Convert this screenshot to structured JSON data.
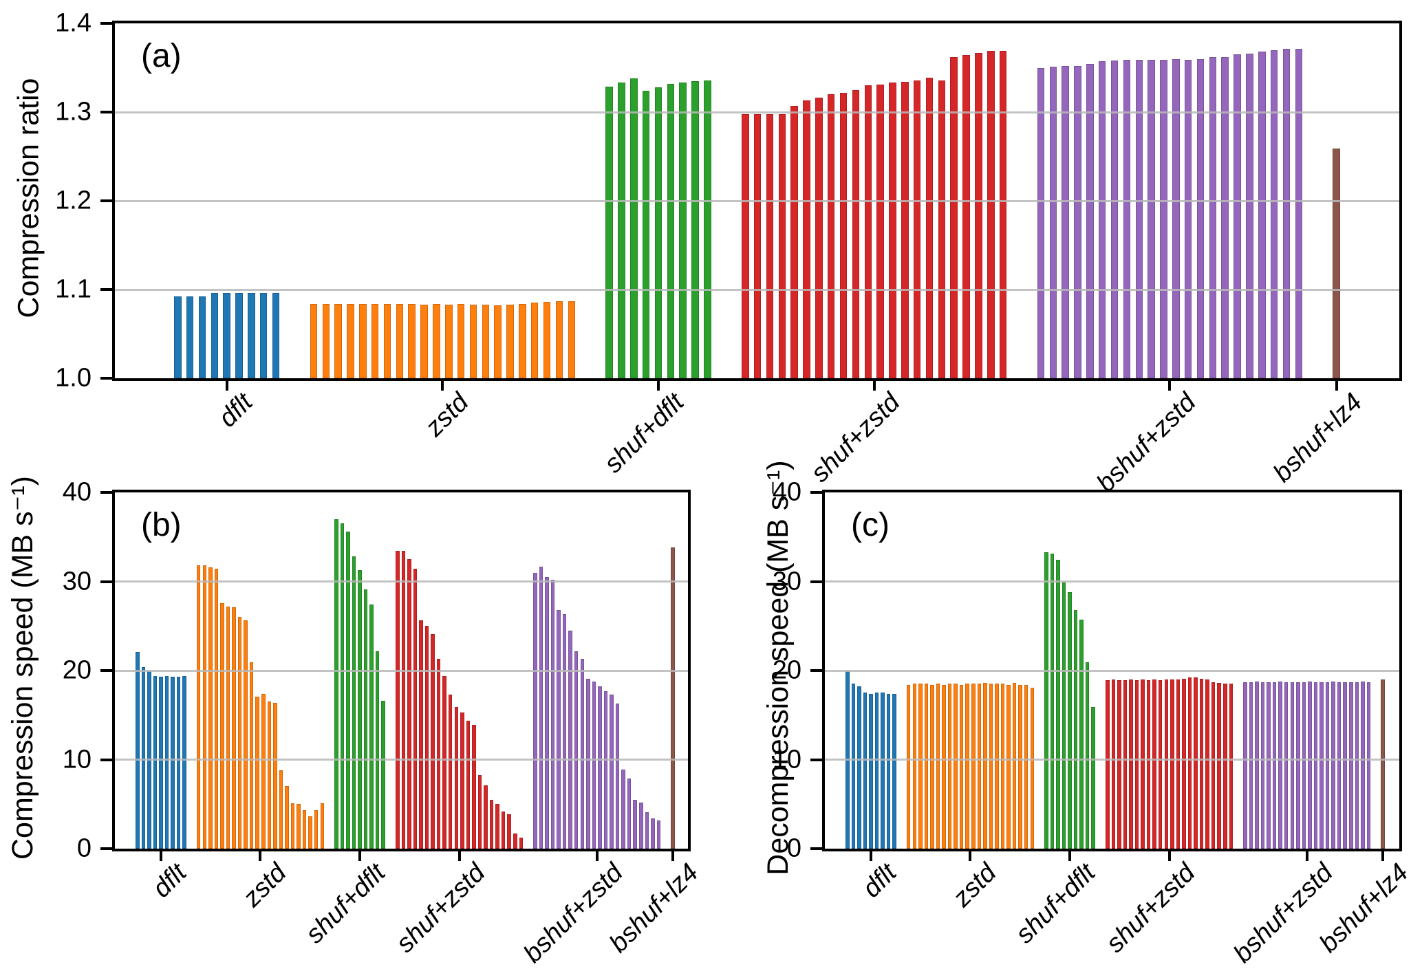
{
  "chart_data": [
    {
      "panel_letter": "(a)",
      "type": "bar",
      "title": "",
      "xlabel": "",
      "ylabel": "Compression ratio",
      "ylim": [
        1.0,
        1.4
      ],
      "yticks": [
        1.0,
        1.1,
        1.2,
        1.3,
        1.4
      ],
      "ytick_labels": [
        "1.0",
        "1.1",
        "1.2",
        "1.3",
        "1.4"
      ],
      "grid": "horizontal gridlines at 1.1, 1.2, 1.3, drawn over bars",
      "legend_position": "none",
      "categories": [
        "dflt",
        "zstd",
        "shuf+dflt",
        "shuf+zstd",
        "bshuf+zstd",
        "bshuf+lz4"
      ],
      "series": [
        {
          "name": "dflt",
          "color": "#1f77b4",
          "values": [
            1.092,
            1.092,
            1.092,
            1.096,
            1.096,
            1.096,
            1.096,
            1.096,
            1.096
          ]
        },
        {
          "name": "zstd",
          "color": "#ff7f0e",
          "values": [
            1.084,
            1.084,
            1.084,
            1.084,
            1.084,
            1.084,
            1.084,
            1.084,
            1.084,
            1.083,
            1.084,
            1.083,
            1.084,
            1.083,
            1.083,
            1.082,
            1.083,
            1.084,
            1.085,
            1.086,
            1.087,
            1.087
          ]
        },
        {
          "name": "shuf+dflt",
          "color": "#2ca02c",
          "values": [
            1.329,
            1.333,
            1.338,
            1.324,
            1.328,
            1.332,
            1.333,
            1.335,
            1.336
          ]
        },
        {
          "name": "shuf+zstd",
          "color": "#d62728",
          "values": [
            1.298,
            1.298,
            1.298,
            1.298,
            1.307,
            1.313,
            1.316,
            1.32,
            1.322,
            1.325,
            1.33,
            1.331,
            1.333,
            1.334,
            1.336,
            1.339,
            1.336,
            1.362,
            1.364,
            1.367,
            1.369,
            1.369
          ]
        },
        {
          "name": "bshuf+zstd",
          "color": "#9467bd",
          "values": [
            1.35,
            1.351,
            1.352,
            1.352,
            1.354,
            1.357,
            1.358,
            1.359,
            1.359,
            1.359,
            1.359,
            1.36,
            1.359,
            1.36,
            1.362,
            1.362,
            1.365,
            1.366,
            1.368,
            1.37,
            1.371,
            1.371
          ]
        },
        {
          "name": "bshuf+lz4",
          "color": "#8c564b",
          "values": [
            1.259
          ]
        }
      ]
    },
    {
      "panel_letter": "(b)",
      "type": "bar",
      "title": "",
      "xlabel": "",
      "ylabel": "Compression speed (MB s⁻¹)",
      "ylim": [
        0,
        40
      ],
      "yticks": [
        0,
        10,
        20,
        30,
        40
      ],
      "ytick_labels": [
        "0",
        "10",
        "20",
        "30",
        "40"
      ],
      "grid": "horizontal gridlines at 10, 20, 30, drawn over bars",
      "legend_position": "none",
      "categories": [
        "dflt",
        "zstd",
        "shuf+dflt",
        "shuf+zstd",
        "bshuf+zstd",
        "bshuf+lz4"
      ],
      "series": [
        {
          "name": "dflt",
          "color": "#1f77b4",
          "values": [
            22.1,
            20.4,
            19.9,
            19.4,
            19.3,
            19.4,
            19.3,
            19.3,
            19.4
          ]
        },
        {
          "name": "zstd",
          "color": "#ff7f0e",
          "values": [
            31.8,
            31.8,
            31.6,
            31.4,
            27.6,
            27.2,
            27.1,
            26.0,
            25.6,
            20.9,
            17.1,
            17.4,
            16.5,
            16.4,
            8.8,
            7.0,
            5.1,
            5.0,
            4.3,
            3.6,
            4.3,
            5.1
          ]
        },
        {
          "name": "shuf+dflt",
          "color": "#2ca02c",
          "values": [
            37.0,
            36.5,
            35.6,
            32.8,
            31.3,
            29.1,
            27.4,
            22.2,
            16.6
          ]
        },
        {
          "name": "shuf+zstd",
          "color": "#d62728",
          "values": [
            33.4,
            33.4,
            32.5,
            31.4,
            25.6,
            25.0,
            24.1,
            21.3,
            19.4,
            17.3,
            15.9,
            15.3,
            14.4,
            13.9,
            8.3,
            7.1,
            5.5,
            5.0,
            4.2,
            3.9,
            1.7,
            1.2
          ]
        },
        {
          "name": "bshuf+zstd",
          "color": "#9467bd",
          "values": [
            31.0,
            31.7,
            30.5,
            30.2,
            26.8,
            26.3,
            24.5,
            22.2,
            21.3,
            19.1,
            18.8,
            18.2,
            17.7,
            17.3,
            16.3,
            8.9,
            7.9,
            5.5,
            5.2,
            4.1,
            3.4,
            3.2
          ]
        },
        {
          "name": "bshuf+lz4",
          "color": "#8c564b",
          "values": [
            33.8
          ]
        }
      ]
    },
    {
      "panel_letter": "(c)",
      "type": "bar",
      "title": "",
      "xlabel": "",
      "ylabel": "Decompression speed (MB s⁻¹)",
      "ylim": [
        0,
        40
      ],
      "yticks": [
        0,
        10,
        20,
        30,
        40
      ],
      "ytick_labels": [
        "0",
        "10",
        "20",
        "30",
        "40"
      ],
      "grid": "horizontal gridlines at 10, 20, 30, drawn over bars",
      "legend_position": "none",
      "categories": [
        "dflt",
        "zstd",
        "shuf+dflt",
        "shuf+zstd",
        "bshuf+zstd",
        "bshuf+lz4"
      ],
      "series": [
        {
          "name": "dflt",
          "color": "#1f77b4",
          "values": [
            19.9,
            18.5,
            18.2,
            17.5,
            17.4,
            17.5,
            17.5,
            17.4,
            17.4
          ]
        },
        {
          "name": "zstd",
          "color": "#ff7f0e",
          "values": [
            18.4,
            18.5,
            18.5,
            18.5,
            18.4,
            18.5,
            18.4,
            18.5,
            18.5,
            18.4,
            18.5,
            18.5,
            18.5,
            18.6,
            18.5,
            18.5,
            18.5,
            18.4,
            18.6,
            18.4,
            18.4,
            18.1
          ]
        },
        {
          "name": "shuf+dflt",
          "color": "#2ca02c",
          "values": [
            33.3,
            33.1,
            32.4,
            30.0,
            28.8,
            26.8,
            25.7,
            20.9,
            15.9
          ]
        },
        {
          "name": "shuf+zstd",
          "color": "#d62728",
          "values": [
            18.9,
            19.0,
            18.9,
            18.9,
            19.0,
            18.9,
            19.0,
            18.9,
            19.0,
            18.9,
            19.0,
            19.0,
            19.0,
            19.1,
            19.2,
            19.2,
            19.1,
            19.0,
            18.7,
            18.6,
            18.5,
            18.5
          ]
        },
        {
          "name": "bshuf+zstd",
          "color": "#9467bd",
          "values": [
            18.7,
            18.7,
            18.8,
            18.7,
            18.7,
            18.7,
            18.8,
            18.7,
            18.7,
            18.7,
            18.7,
            18.8,
            18.7,
            18.7,
            18.7,
            18.8,
            18.7,
            18.7,
            18.7,
            18.7,
            18.8,
            18.7
          ]
        },
        {
          "name": "bshuf+lz4",
          "color": "#8c564b",
          "values": [
            19.0
          ]
        }
      ]
    }
  ]
}
